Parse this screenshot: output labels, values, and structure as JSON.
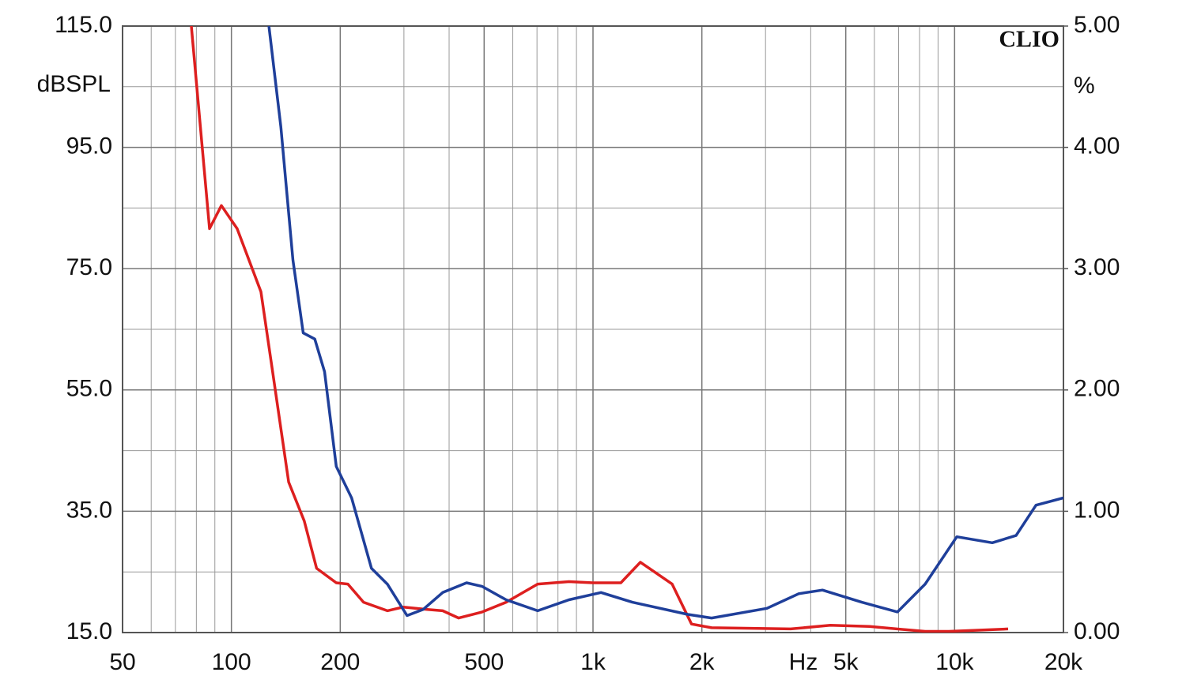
{
  "chart_data": {
    "type": "line",
    "brand": "CLIO",
    "y_label": "dBSPL",
    "y2_label": "%",
    "x_label": "Hz",
    "xscale": "log",
    "grid": true,
    "xlim": [
      50,
      20000
    ],
    "xticks": [
      50,
      100,
      200,
      500,
      {
        "value": 1000,
        "label": "1k"
      },
      {
        "value": 2000,
        "label": "2k"
      },
      {
        "value": 5000,
        "label": "5k"
      },
      {
        "value": 10000,
        "label": "10k"
      },
      {
        "value": 20000,
        "label": "20k"
      }
    ],
    "ylim": [
      15,
      115
    ],
    "yticks": [
      {
        "value": 115,
        "label": "115.0"
      },
      {
        "value": 95,
        "label": "95.0"
      },
      {
        "value": 75,
        "label": "75.0"
      },
      {
        "value": 55,
        "label": "55.0"
      },
      {
        "value": 35,
        "label": "35.0"
      },
      {
        "value": 15,
        "label": "15.0"
      }
    ],
    "y2lim": [
      0,
      5
    ],
    "y2ticks": [
      {
        "value": 5,
        "label": "5.00"
      },
      {
        "value": 4,
        "label": "4.00"
      },
      {
        "value": 3,
        "label": "3.00"
      },
      {
        "value": 2,
        "label": "2.00"
      },
      {
        "value": 1,
        "label": "1.00"
      },
      {
        "value": 0,
        "label": "0.00"
      }
    ],
    "series": [
      {
        "color": "#dd1f1f",
        "axis": "y2",
        "x": [
          77.5,
          87,
          93.8,
          103.7,
          120.7,
          130,
          144,
          159,
          172,
          195,
          210,
          232,
          270,
          299,
          348,
          384,
          425,
          494,
          575,
          703,
          858,
          1000,
          1194,
          1352,
          1655,
          1873,
          2128,
          3520,
          4530,
          5820,
          8290,
          9640,
          14060
        ],
        "values": [
          5.0,
          3.33,
          3.52,
          3.33,
          2.81,
          2.15,
          1.24,
          0.92,
          0.53,
          0.41,
          0.4,
          0.25,
          0.18,
          0.21,
          0.19,
          0.18,
          0.12,
          0.17,
          0.25,
          0.4,
          0.42,
          0.41,
          0.41,
          0.58,
          0.4,
          0.07,
          0.04,
          0.03,
          0.06,
          0.05,
          0.01,
          0.01,
          0.03
        ]
      },
      {
        "color": "#1f3f9a",
        "axis": "y2",
        "x": [
          127,
          137,
          148,
          158,
          170,
          181,
          195,
          215,
          244,
          270,
          306,
          339,
          384,
          447,
          494,
          575,
          703,
          858,
          1052,
          1285,
          1828,
          2128,
          3027,
          3707,
          4310,
          5540,
          6950,
          8290,
          10140,
          12710,
          14790,
          16790,
          20000
        ],
        "values": [
          5.0,
          4.17,
          3.07,
          2.47,
          2.42,
          2.15,
          1.37,
          1.11,
          0.53,
          0.4,
          0.14,
          0.19,
          0.33,
          0.41,
          0.38,
          0.27,
          0.18,
          0.27,
          0.33,
          0.25,
          0.15,
          0.12,
          0.2,
          0.32,
          0.35,
          0.25,
          0.17,
          0.4,
          0.79,
          0.74,
          0.8,
          1.05,
          1.11
        ]
      }
    ]
  }
}
